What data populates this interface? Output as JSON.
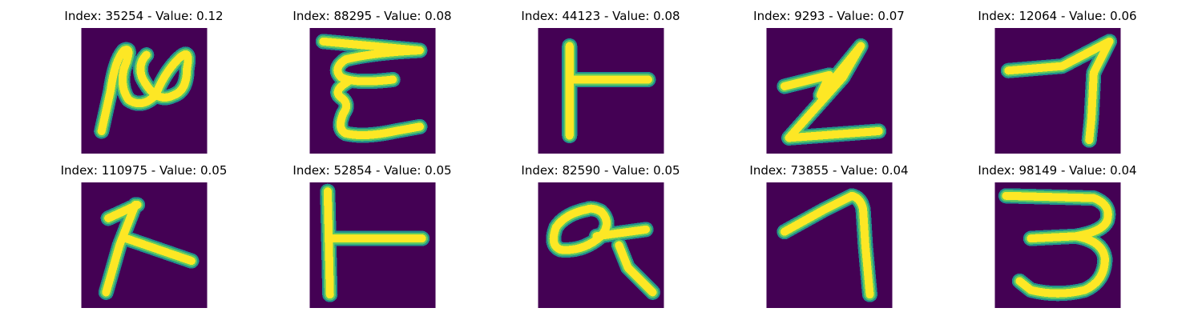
{
  "colors": {
    "background": "#440154",
    "stroke_core": "#fde725",
    "stroke_mid": "#5ec962",
    "stroke_edge": "#21918c"
  },
  "panels": [
    {
      "title": "Index: 35254 - Value: 0.12"
    },
    {
      "title": "Index: 88295 - Value: 0.08"
    },
    {
      "title": "Index: 44123 - Value: 0.08"
    },
    {
      "title": "Index: 9293 - Value: 0.07"
    },
    {
      "title": "Index: 12064 - Value: 0.06"
    },
    {
      "title": "Index: 110975 - Value: 0.05"
    },
    {
      "title": "Index: 52854 - Value: 0.05"
    },
    {
      "title": "Index: 82590 - Value: 0.05"
    },
    {
      "title": "Index: 73855 - Value: 0.04"
    },
    {
      "title": "Index: 98149 - Value: 0.04"
    }
  ]
}
